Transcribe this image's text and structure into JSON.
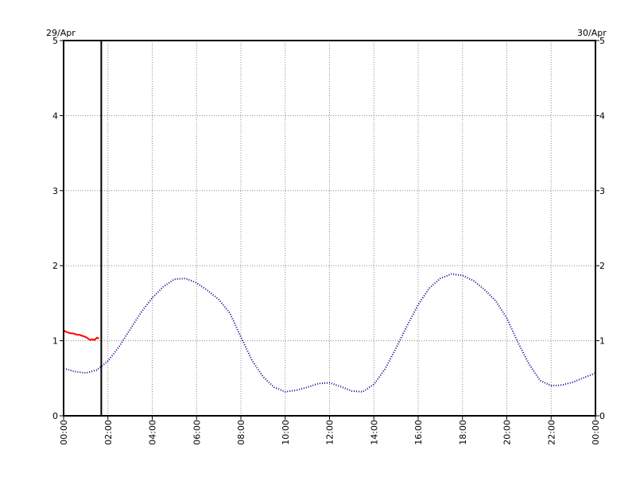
{
  "chart_data": {
    "type": "line",
    "date_left": "29/Apr",
    "date_right": "30/Apr",
    "xlim": [
      0,
      24
    ],
    "ylim": [
      0,
      5
    ],
    "x_ticks": [
      "00:00",
      "02:00",
      "04:00",
      "06:00",
      "08:00",
      "10:00",
      "12:00",
      "14:00",
      "16:00",
      "18:00",
      "20:00",
      "22:00",
      "00:00"
    ],
    "y_ticks": [
      "0",
      "1",
      "2",
      "3",
      "4",
      "5"
    ],
    "grid": true,
    "now_marker_hour": 1.7,
    "colors": {
      "predicted": "#00008b",
      "observed": "#ff0000",
      "grid": "#888888",
      "axis": "#000000"
    },
    "series": [
      {
        "key": "predicted",
        "style": "dotted",
        "x": [
          0,
          0.5,
          1,
          1.5,
          2,
          2.5,
          3,
          3.5,
          4,
          4.5,
          5,
          5.5,
          6,
          6.5,
          7,
          7.5,
          8,
          8.5,
          9,
          9.5,
          10,
          10.5,
          11,
          11.5,
          12,
          12.5,
          13,
          13.5,
          14,
          14.5,
          15,
          15.5,
          16,
          16.5,
          17,
          17.5,
          18,
          18.5,
          19,
          19.5,
          20,
          20.5,
          21,
          21.5,
          22,
          22.5,
          23,
          23.5,
          24
        ],
        "y": [
          0.63,
          0.59,
          0.57,
          0.61,
          0.73,
          0.92,
          1.15,
          1.38,
          1.57,
          1.72,
          1.82,
          1.83,
          1.77,
          1.67,
          1.55,
          1.37,
          1.05,
          0.74,
          0.52,
          0.38,
          0.32,
          0.34,
          0.38,
          0.43,
          0.44,
          0.39,
          0.33,
          0.32,
          0.42,
          0.62,
          0.9,
          1.2,
          1.48,
          1.7,
          1.83,
          1.89,
          1.87,
          1.8,
          1.68,
          1.53,
          1.3,
          0.98,
          0.69,
          0.47,
          0.4,
          0.41,
          0.45,
          0.51,
          0.57
        ]
      },
      {
        "key": "observed",
        "style": "solid",
        "x": [
          0,
          0.1,
          0.2,
          0.3,
          0.4,
          0.5,
          0.6,
          0.7,
          0.8,
          0.9,
          1.0,
          1.1,
          1.2,
          1.3,
          1.4,
          1.5,
          1.6
        ],
        "y": [
          1.14,
          1.12,
          1.11,
          1.1,
          1.1,
          1.09,
          1.08,
          1.08,
          1.07,
          1.06,
          1.05,
          1.03,
          1.01,
          1.02,
          1.01,
          1.04,
          1.03
        ]
      }
    ]
  }
}
